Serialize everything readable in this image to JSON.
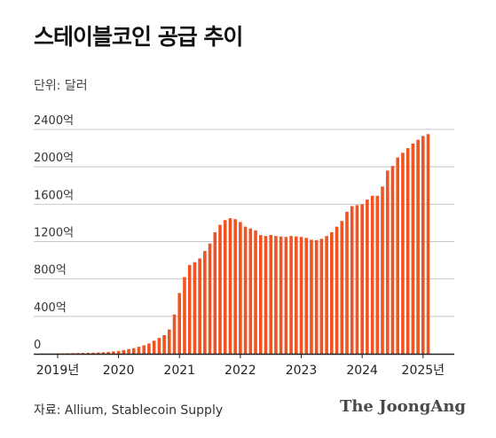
{
  "title": "스테이블코인 공급 추이",
  "unit_label": "단위: 달러",
  "source": "자료: Allium, Stablecoin Supply",
  "brand": "The JoongAng",
  "colors": {
    "bar": "#f05423",
    "grid": "#c8c8c8",
    "axis": "#222222"
  },
  "chart_data": {
    "type": "bar",
    "title": "스테이블코인 공급 추이",
    "ylabel": "",
    "xlabel": "",
    "ylim": [
      0,
      2400
    ],
    "yticks": [
      0,
      400,
      800,
      1200,
      1600,
      2000,
      2400
    ],
    "ytick_labels": [
      "0",
      "400억",
      "800억",
      "1200억",
      "1600억",
      "2000억",
      "2400억"
    ],
    "xticks": [
      {
        "label": "2019년",
        "index": 3
      },
      {
        "label": "2020",
        "index": 15
      },
      {
        "label": "2021",
        "index": 27
      },
      {
        "label": "2022",
        "index": 39
      },
      {
        "label": "2023",
        "index": 51
      },
      {
        "label": "2024",
        "index": 63
      },
      {
        "label": "2025년",
        "index": 75
      }
    ],
    "grid": true,
    "series": [
      {
        "values": [
          2,
          2,
          3,
          4,
          5,
          6,
          7,
          8,
          9,
          10,
          12,
          14,
          16,
          20,
          25,
          30,
          40,
          50,
          60,
          75,
          90,
          110,
          140,
          170,
          200,
          260,
          420,
          650,
          820,
          950,
          980,
          1020,
          1100,
          1180,
          1300,
          1380,
          1430,
          1450,
          1440,
          1410,
          1360,
          1340,
          1320,
          1270,
          1260,
          1270,
          1260,
          1255,
          1250,
          1260,
          1255,
          1250,
          1240,
          1220,
          1215,
          1230,
          1260,
          1300,
          1360,
          1420,
          1520,
          1580,
          1590,
          1600,
          1650,
          1690,
          1690,
          1790,
          1960,
          2010,
          2100,
          2150,
          2200,
          2250,
          2290,
          2330,
          2350
        ]
      }
    ]
  }
}
